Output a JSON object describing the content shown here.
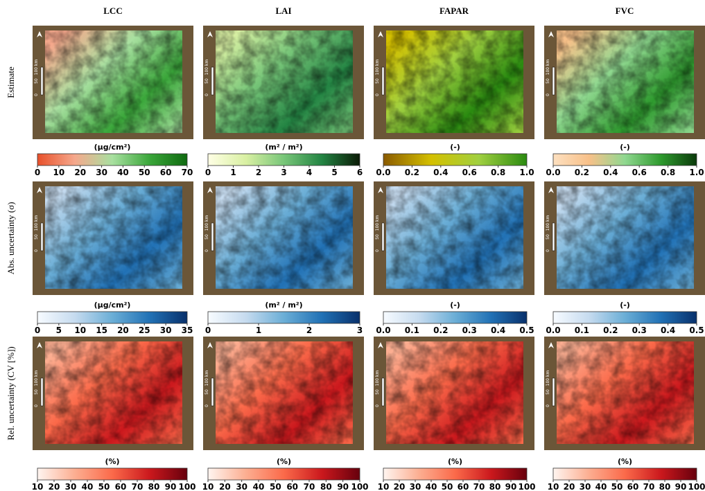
{
  "columns": [
    "LCC",
    "LAI",
    "FAPAR",
    "FVC"
  ],
  "scale_bar": [
    "100 km",
    "50",
    "0"
  ],
  "rows": [
    {
      "label": "Estimate",
      "colorbars": [
        {
          "unit": "(μg/cm²)",
          "lim": [
            0,
            70
          ],
          "ticks": [
            0,
            10,
            20,
            30,
            40,
            50,
            60,
            70
          ],
          "colors": [
            "#e8502a",
            "#f5a88c",
            "#a8e0a0",
            "#3aa63a",
            "#0f6a10"
          ]
        },
        {
          "unit": "(m² / m²)",
          "lim": [
            0,
            6
          ],
          "ticks": [
            0,
            1,
            2,
            3,
            4,
            5,
            6
          ],
          "colors": [
            "#ffffe5",
            "#d9f0a3",
            "#78c679",
            "#238443",
            "#0a1a05"
          ]
        },
        {
          "unit": "(-)",
          "lim": [
            0,
            1
          ],
          "ticks": [
            {
              "value": 0,
              "label": "0.0"
            },
            0.2,
            0.4,
            0.6,
            0.8,
            {
              "value": 1,
              "label": "1.0"
            }
          ],
          "colors": [
            "#8a5a00",
            "#d4c000",
            "#a0d040",
            "#2a8a10"
          ]
        },
        {
          "unit": "(-)",
          "lim": [
            0,
            1
          ],
          "ticks": [
            {
              "value": 0,
              "label": "0.0"
            },
            0.2,
            0.4,
            0.6,
            0.8,
            {
              "value": 1,
              "label": "1.0"
            }
          ],
          "colors": [
            "#fde0c0",
            "#f7c089",
            "#90d890",
            "#2e9a2e",
            "#0a3a0a"
          ]
        }
      ]
    },
    {
      "label": "Abs. uncertainty (σ)",
      "colorbars": [
        {
          "unit": "(μg/cm²)",
          "lim": [
            0,
            35
          ],
          "ticks": [
            0,
            5,
            10,
            15,
            20,
            25,
            30,
            35
          ],
          "colors": [
            "#f7fbff",
            "#c6dbef",
            "#6baed6",
            "#2171b5",
            "#08306b"
          ]
        },
        {
          "unit": "(m² / m²)",
          "lim": [
            0,
            3
          ],
          "ticks": [
            0,
            1,
            2,
            3
          ],
          "colors": [
            "#f7fbff",
            "#c6dbef",
            "#6baed6",
            "#2171b5",
            "#08306b"
          ]
        },
        {
          "unit": "(-)",
          "lim": [
            0,
            0.5
          ],
          "ticks": [
            {
              "value": 0,
              "label": "0.0"
            },
            0.1,
            0.2,
            0.3,
            0.4,
            0.5
          ],
          "colors": [
            "#f7fbff",
            "#c6dbef",
            "#6baed6",
            "#2171b5",
            "#08306b"
          ]
        },
        {
          "unit": "(-)",
          "lim": [
            0,
            0.5
          ],
          "ticks": [
            {
              "value": 0,
              "label": "0.0"
            },
            0.1,
            0.2,
            0.3,
            0.4,
            0.5
          ],
          "colors": [
            "#f7fbff",
            "#c6dbef",
            "#6baed6",
            "#2171b5",
            "#08306b"
          ]
        }
      ]
    },
    {
      "label": "Rel. uncertainty (CV [%])",
      "colorbars": [
        {
          "unit": "(%)",
          "lim": [
            10,
            100
          ],
          "ticks": [
            10,
            20,
            30,
            40,
            50,
            60,
            70,
            80,
            90,
            100
          ],
          "colors": [
            "#fff5f0",
            "#fcae91",
            "#fb6a4a",
            "#cb181d",
            "#67000d"
          ]
        },
        {
          "unit": "(%)",
          "lim": [
            10,
            100
          ],
          "ticks": [
            10,
            20,
            30,
            40,
            50,
            60,
            70,
            80,
            90,
            100
          ],
          "colors": [
            "#fff5f0",
            "#fcae91",
            "#fb6a4a",
            "#cb181d",
            "#67000d"
          ]
        },
        {
          "unit": "(%)",
          "lim": [
            10,
            100
          ],
          "ticks": [
            10,
            20,
            30,
            40,
            50,
            60,
            70,
            80,
            90,
            100
          ],
          "colors": [
            "#fff5f0",
            "#fcae91",
            "#fb6a4a",
            "#cb181d",
            "#67000d"
          ]
        },
        {
          "unit": "(%)",
          "lim": [
            10,
            100
          ],
          "ticks": [
            10,
            20,
            30,
            40,
            50,
            60,
            70,
            80,
            90,
            100
          ],
          "colors": [
            "#fff5f0",
            "#fcae91",
            "#fb6a4a",
            "#cb181d",
            "#67000d"
          ]
        }
      ]
    }
  ]
}
